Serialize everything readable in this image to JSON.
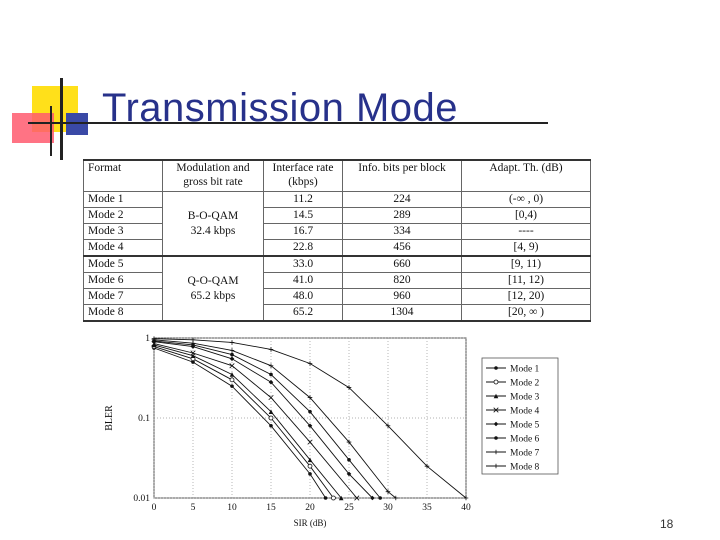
{
  "slide": {
    "title": "Transmission Mode",
    "page_number": "18",
    "colors": {
      "title": "#27318a",
      "yellow": "#ffe01a",
      "red": "#ff5a6e",
      "blue": "#3a49a6"
    }
  },
  "table": {
    "headers": [
      "Format",
      "Modulation and gross bit rate",
      "Interface rate (kbps)",
      "Info. bits per block",
      "Adapt. Th. (dB)"
    ],
    "groups": [
      {
        "modulation": "B-O-QAM",
        "rate": "32.4 kbps"
      },
      {
        "modulation": "Q-O-QAM",
        "rate": "65.2 kbps"
      }
    ],
    "rows": [
      {
        "format": "Mode 1",
        "iface": "11.2",
        "bits": "224",
        "th": "(-∞ , 0)"
      },
      {
        "format": "Mode 2",
        "iface": "14.5",
        "bits": "289",
        "th": "[0,4)"
      },
      {
        "format": "Mode 3",
        "iface": "16.7",
        "bits": "334",
        "th": "----"
      },
      {
        "format": "Mode 4",
        "iface": "22.8",
        "bits": "456",
        "th": "[4, 9)"
      },
      {
        "format": "Mode 5",
        "iface": "33.0",
        "bits": "660",
        "th": "[9, 11)"
      },
      {
        "format": "Mode 6",
        "iface": "41.0",
        "bits": "820",
        "th": "[11, 12)"
      },
      {
        "format": "Mode 7",
        "iface": "48.0",
        "bits": "960",
        "th": "[12, 20)"
      },
      {
        "format": "Mode 8",
        "iface": "65.2",
        "bits": "1304",
        "th": "[20, ∞ )"
      }
    ]
  },
  "chart_data": {
    "type": "line",
    "xlabel": "SIR (dB)",
    "ylabel": "BLER",
    "xlim": [
      0,
      40
    ],
    "ylim": [
      0.01,
      1
    ],
    "yscale": "log",
    "xticks": [
      0,
      5,
      10,
      15,
      20,
      25,
      30,
      35,
      40
    ],
    "yticks": [
      {
        "v": 1,
        "label": "1"
      },
      {
        "v": 0.1,
        "label": "0.1"
      },
      {
        "v": 0.01,
        "label": "0.01"
      }
    ],
    "legend_position": "right",
    "series": [
      {
        "name": "Mode 1",
        "marker": "dot",
        "points": [
          [
            0,
            0.75
          ],
          [
            5,
            0.5
          ],
          [
            10,
            0.25
          ],
          [
            15,
            0.08
          ],
          [
            20,
            0.02
          ],
          [
            22,
            0.01
          ]
        ]
      },
      {
        "name": "Mode 2",
        "marker": "circle",
        "points": [
          [
            0,
            0.78
          ],
          [
            5,
            0.55
          ],
          [
            10,
            0.3
          ],
          [
            15,
            0.1
          ],
          [
            20,
            0.025
          ],
          [
            23,
            0.01
          ]
        ]
      },
      {
        "name": "Mode 3",
        "marker": "triangle",
        "points": [
          [
            0,
            0.82
          ],
          [
            5,
            0.6
          ],
          [
            10,
            0.35
          ],
          [
            15,
            0.12
          ],
          [
            20,
            0.03
          ],
          [
            24,
            0.01
          ]
        ]
      },
      {
        "name": "Mode 4",
        "marker": "x",
        "points": [
          [
            0,
            0.85
          ],
          [
            5,
            0.65
          ],
          [
            10,
            0.45
          ],
          [
            15,
            0.18
          ],
          [
            20,
            0.05
          ],
          [
            26,
            0.01
          ]
        ]
      },
      {
        "name": "Mode 5",
        "marker": "diamond",
        "points": [
          [
            0,
            0.9
          ],
          [
            5,
            0.78
          ],
          [
            10,
            0.55
          ],
          [
            15,
            0.28
          ],
          [
            20,
            0.08
          ],
          [
            25,
            0.02
          ],
          [
            28,
            0.01
          ]
        ]
      },
      {
        "name": "Mode 6",
        "marker": "filled",
        "points": [
          [
            0,
            0.92
          ],
          [
            5,
            0.82
          ],
          [
            10,
            0.62
          ],
          [
            15,
            0.35
          ],
          [
            20,
            0.12
          ],
          [
            25,
            0.03
          ],
          [
            29,
            0.01
          ]
        ]
      },
      {
        "name": "Mode 7",
        "marker": "plus",
        "points": [
          [
            0,
            0.95
          ],
          [
            5,
            0.86
          ],
          [
            10,
            0.7
          ],
          [
            15,
            0.45
          ],
          [
            20,
            0.18
          ],
          [
            25,
            0.05
          ],
          [
            30,
            0.012
          ],
          [
            31,
            0.01
          ]
        ]
      },
      {
        "name": "Mode 8",
        "marker": "plus",
        "points": [
          [
            0,
            0.98
          ],
          [
            5,
            0.95
          ],
          [
            10,
            0.88
          ],
          [
            15,
            0.72
          ],
          [
            20,
            0.48
          ],
          [
            25,
            0.24
          ],
          [
            30,
            0.08
          ],
          [
            35,
            0.025
          ],
          [
            40,
            0.01
          ]
        ]
      }
    ]
  }
}
